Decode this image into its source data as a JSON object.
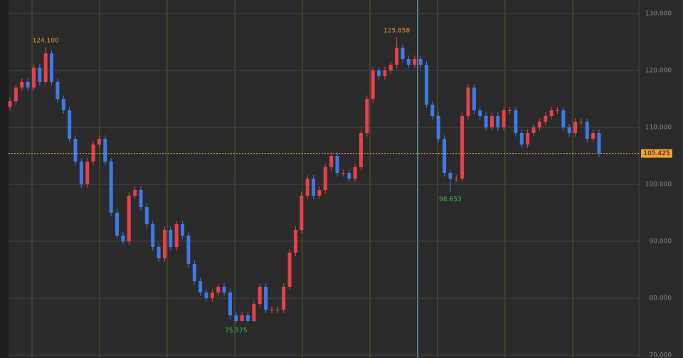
{
  "chart_data": {
    "type": "candlestick",
    "open": [
      113.6,
      114.6,
      117,
      118,
      117,
      120.5,
      118,
      123,
      118,
      115,
      113,
      108,
      104,
      100,
      104,
      107,
      108,
      104,
      95,
      91,
      90,
      98,
      99,
      96,
      93,
      89,
      87,
      92,
      89,
      93,
      91,
      86,
      83,
      81,
      80,
      81,
      82,
      81,
      77,
      76,
      77,
      76,
      79,
      82,
      78,
      78,
      78,
      82,
      88,
      92,
      98,
      101,
      98,
      99,
      103,
      105,
      102,
      102,
      101,
      103,
      109,
      115,
      120,
      119,
      120,
      121,
      124,
      122,
      121,
      122,
      121,
      114,
      112,
      108,
      102,
      101,
      101,
      112,
      117,
      113,
      112,
      110,
      112,
      110,
      113,
      113,
      109,
      107,
      109,
      110,
      111,
      112,
      113,
      113,
      110,
      109,
      111,
      111,
      108,
      109
    ],
    "high": [
      115.2,
      117.6,
      118.6,
      118.6,
      121.1,
      121.1,
      124.1,
      123.6,
      118.6,
      115.6,
      113.6,
      108.6,
      104.6,
      104.6,
      107.6,
      108.6,
      108.6,
      104.6,
      95.6,
      91.6,
      98.6,
      99.6,
      99.6,
      96.6,
      93.6,
      89.6,
      92.6,
      92.6,
      93.6,
      93.6,
      91.6,
      86.6,
      83.6,
      81.6,
      81.6,
      82.6,
      82.6,
      81.6,
      77.6,
      77.6,
      77.6,
      79.6,
      82.6,
      82.6,
      78.6,
      78.6,
      82.6,
      88.6,
      92.6,
      98.6,
      101.6,
      101.6,
      99.6,
      103.6,
      105.6,
      105.6,
      102.6,
      102.6,
      103.6,
      109.6,
      115.6,
      120.6,
      120.6,
      120.6,
      121.6,
      125.858,
      124.6,
      122.6,
      122.6,
      122.6,
      121.6,
      114.6,
      112.6,
      108.6,
      102.6,
      101.6,
      112.6,
      117.6,
      117.6,
      113.6,
      112.6,
      112.6,
      112.6,
      113.6,
      113.6,
      113.6,
      109.6,
      109.6,
      110.6,
      111.6,
      112.6,
      113.6,
      113.6,
      113.6,
      110.6,
      111.6,
      111.6,
      111.6,
      109.6,
      109.6
    ],
    "low": [
      113.0,
      114.0,
      116.4,
      116.4,
      116.4,
      117.4,
      117.4,
      117.4,
      114.4,
      112.4,
      107.4,
      103.4,
      99.4,
      99.4,
      103.4,
      106.4,
      103.4,
      94.4,
      90.4,
      89.4,
      89.4,
      97.4,
      95.4,
      92.4,
      88.4,
      86.4,
      86.4,
      88.4,
      88.4,
      90.4,
      85.4,
      82.4,
      80.4,
      79.4,
      79.4,
      80.4,
      80.4,
      76.4,
      75.575,
      75.9,
      75.9,
      75.9,
      78.4,
      77.4,
      77.4,
      77.4,
      77.4,
      81.4,
      87.4,
      91.4,
      97.4,
      97.4,
      97.4,
      98.4,
      102.4,
      101.4,
      101.4,
      100.4,
      100.4,
      102.4,
      108.4,
      114.4,
      118.4,
      118.4,
      119.4,
      120.4,
      121.4,
      120.4,
      120.4,
      120.4,
      113.4,
      111.4,
      107.4,
      101.4,
      98.653,
      100.4,
      100.4,
      111.4,
      112.4,
      111.4,
      109.4,
      109.4,
      109.4,
      109.4,
      112.4,
      108.4,
      106.4,
      106.4,
      108.4,
      109.4,
      110.4,
      111.4,
      112.4,
      109.4,
      108.4,
      108.4,
      110.4,
      107.4,
      107.4,
      104.8
    ],
    "close": [
      114.6,
      117,
      118,
      117,
      120.5,
      118,
      123,
      118,
      115,
      113,
      108,
      104,
      100,
      104,
      107,
      108,
      104,
      95,
      91,
      90,
      98,
      99,
      96,
      93,
      89,
      87,
      92,
      89,
      93,
      91,
      86,
      83,
      81,
      80,
      81,
      82,
      81,
      77,
      76,
      77,
      76,
      79,
      82,
      78,
      78,
      78,
      82,
      88,
      92,
      98,
      101,
      98,
      99,
      103,
      105,
      102,
      102,
      101,
      103,
      109,
      115,
      120,
      119,
      120,
      121,
      124,
      122,
      121,
      122,
      121,
      114,
      112,
      108,
      102,
      101,
      101,
      112,
      117,
      113,
      112,
      110,
      112,
      110,
      113,
      113,
      109,
      107,
      109,
      110,
      111,
      112,
      113,
      113,
      110,
      109,
      111,
      111,
      108,
      109,
      105.425
    ],
    "up_color": "#e8404a",
    "down_color": "#3d7ae8",
    "ylim": [
      70,
      130
    ],
    "yticks": [
      {
        "value": 70,
        "label": "70.000"
      },
      {
        "value": 80,
        "label": "80.000"
      },
      {
        "value": 90,
        "label": "90.000"
      },
      {
        "value": 100,
        "label": "100.000"
      },
      {
        "value": 110,
        "label": "110.000"
      },
      {
        "value": 120,
        "label": "120.000"
      },
      {
        "value": 130,
        "label": "130.000"
      }
    ],
    "high_annotations": [
      {
        "value": 124.1,
        "label": "124.100"
      },
      {
        "value": 125.858,
        "label": "125.858"
      }
    ],
    "low_annotations": [
      {
        "value": 75.575,
        "label": "75.575"
      },
      {
        "value": 98.653,
        "label": "98.653"
      }
    ],
    "grid": true
  }
}
